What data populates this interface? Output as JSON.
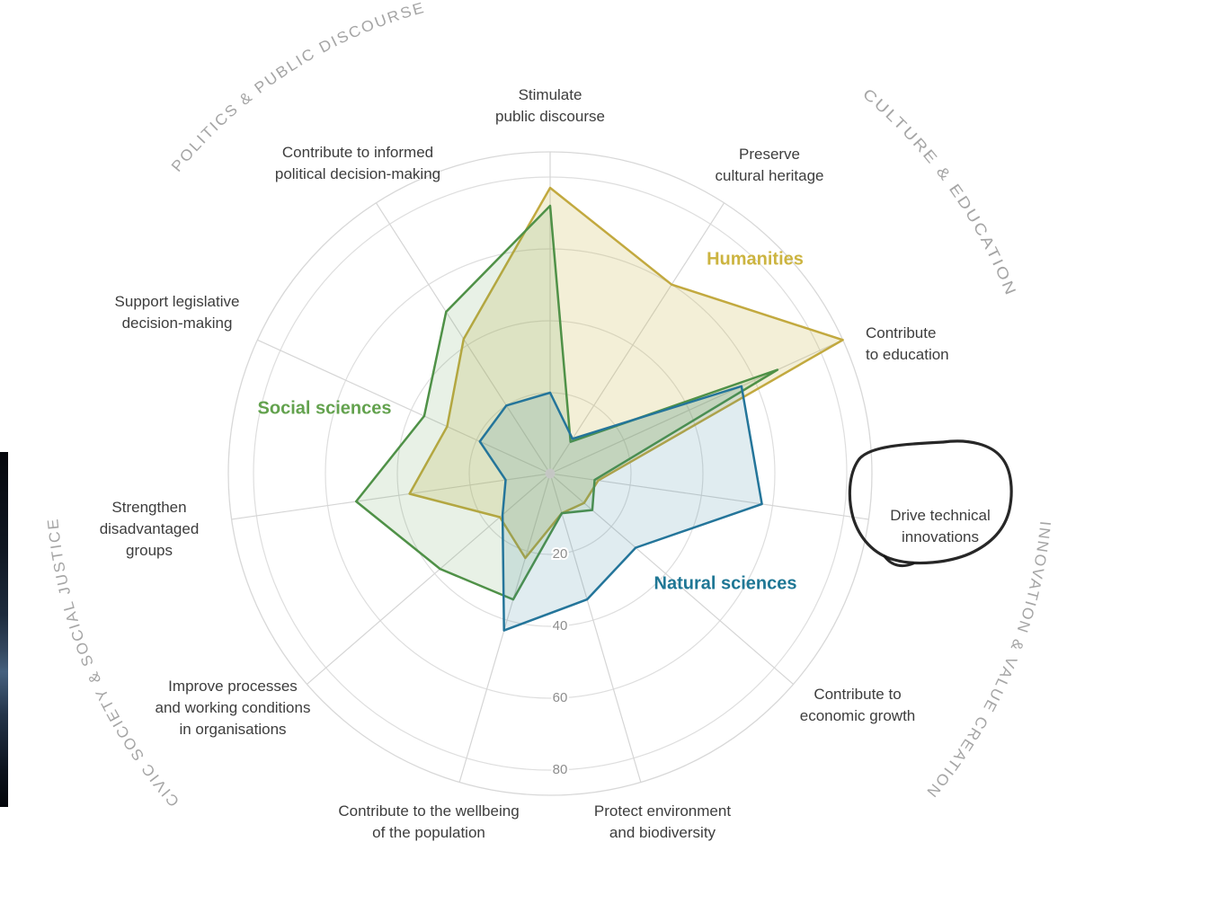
{
  "chart_data": {
    "type": "radar",
    "axes": [
      {
        "label": "Stimulate public discourse",
        "lines": [
          "Stimulate",
          "public discourse"
        ]
      },
      {
        "label": "Preserve cultural heritage",
        "lines": [
          "Preserve",
          "cultural heritage"
        ]
      },
      {
        "label": "Contribute to education",
        "lines": [
          "Contribute",
          "to education"
        ]
      },
      {
        "label": "Drive technical innovations",
        "lines": [
          "Drive technical",
          "innovations"
        ]
      },
      {
        "label": "Contribute to economic growth",
        "lines": [
          "Contribute to",
          "economic growth"
        ]
      },
      {
        "label": "Protect environment and biodiversity",
        "lines": [
          "Protect environment",
          "and biodiversity"
        ]
      },
      {
        "label": "Contribute to the wellbeing of the population",
        "lines": [
          "Contribute to the wellbeing",
          "of the population"
        ]
      },
      {
        "label": "Improve processes and working conditions in organisations",
        "lines": [
          "Improve processes",
          "and working conditions",
          "in organisations"
        ]
      },
      {
        "label": "Strengthen disadvantaged groups",
        "lines": [
          "Strengthen",
          "disadvantaged",
          "groups"
        ]
      },
      {
        "label": "Support legislative decision-making",
        "lines": [
          "Support legislative",
          "decision-making"
        ]
      },
      {
        "label": "Contribute to informed political decision-making",
        "lines": [
          "Contribute to informed",
          "political decision-making"
        ]
      }
    ],
    "series": [
      {
        "name": "Humanities",
        "stroke": "#c2a93f",
        "fill": "#c9b64b",
        "fill_opacity": 0.22,
        "label_color": "#ccb440",
        "values": [
          77,
          60,
          87,
          11,
          10,
          9,
          22,
          16,
          37,
          29,
          42
        ]
      },
      {
        "name": "Social sciences",
        "stroke": "#4f9147",
        "fill": "#5f9c50",
        "fill_opacity": 0.14,
        "label_color": "#63a24e",
        "values": [
          72,
          8,
          67,
          10,
          13,
          9,
          34,
          38,
          52,
          36,
          51
        ]
      },
      {
        "name": "Natural sciences",
        "stroke": "#24759a",
        "fill": "#2e7f9b",
        "fill_opacity": 0.15,
        "label_color": "#1f7795",
        "values": [
          20,
          9,
          56,
          57,
          29,
          34,
          43,
          15,
          10,
          19,
          20
        ]
      }
    ],
    "radial_ticks": [
      "20",
      "40",
      "60",
      "80"
    ],
    "sector_labels": [
      "POLITICS & PUBLIC DISCOURSE",
      "CULTURE & EDUCATION",
      "INNOVATION & VALUE CREATION",
      "CIVIC SOCIETY & SOCIAL JUSTICE"
    ],
    "grid": true,
    "legend_position": "inline-next-to-series",
    "annotation": {
      "type": "hand-drawn circle",
      "target": "Drive technical innovations"
    }
  }
}
